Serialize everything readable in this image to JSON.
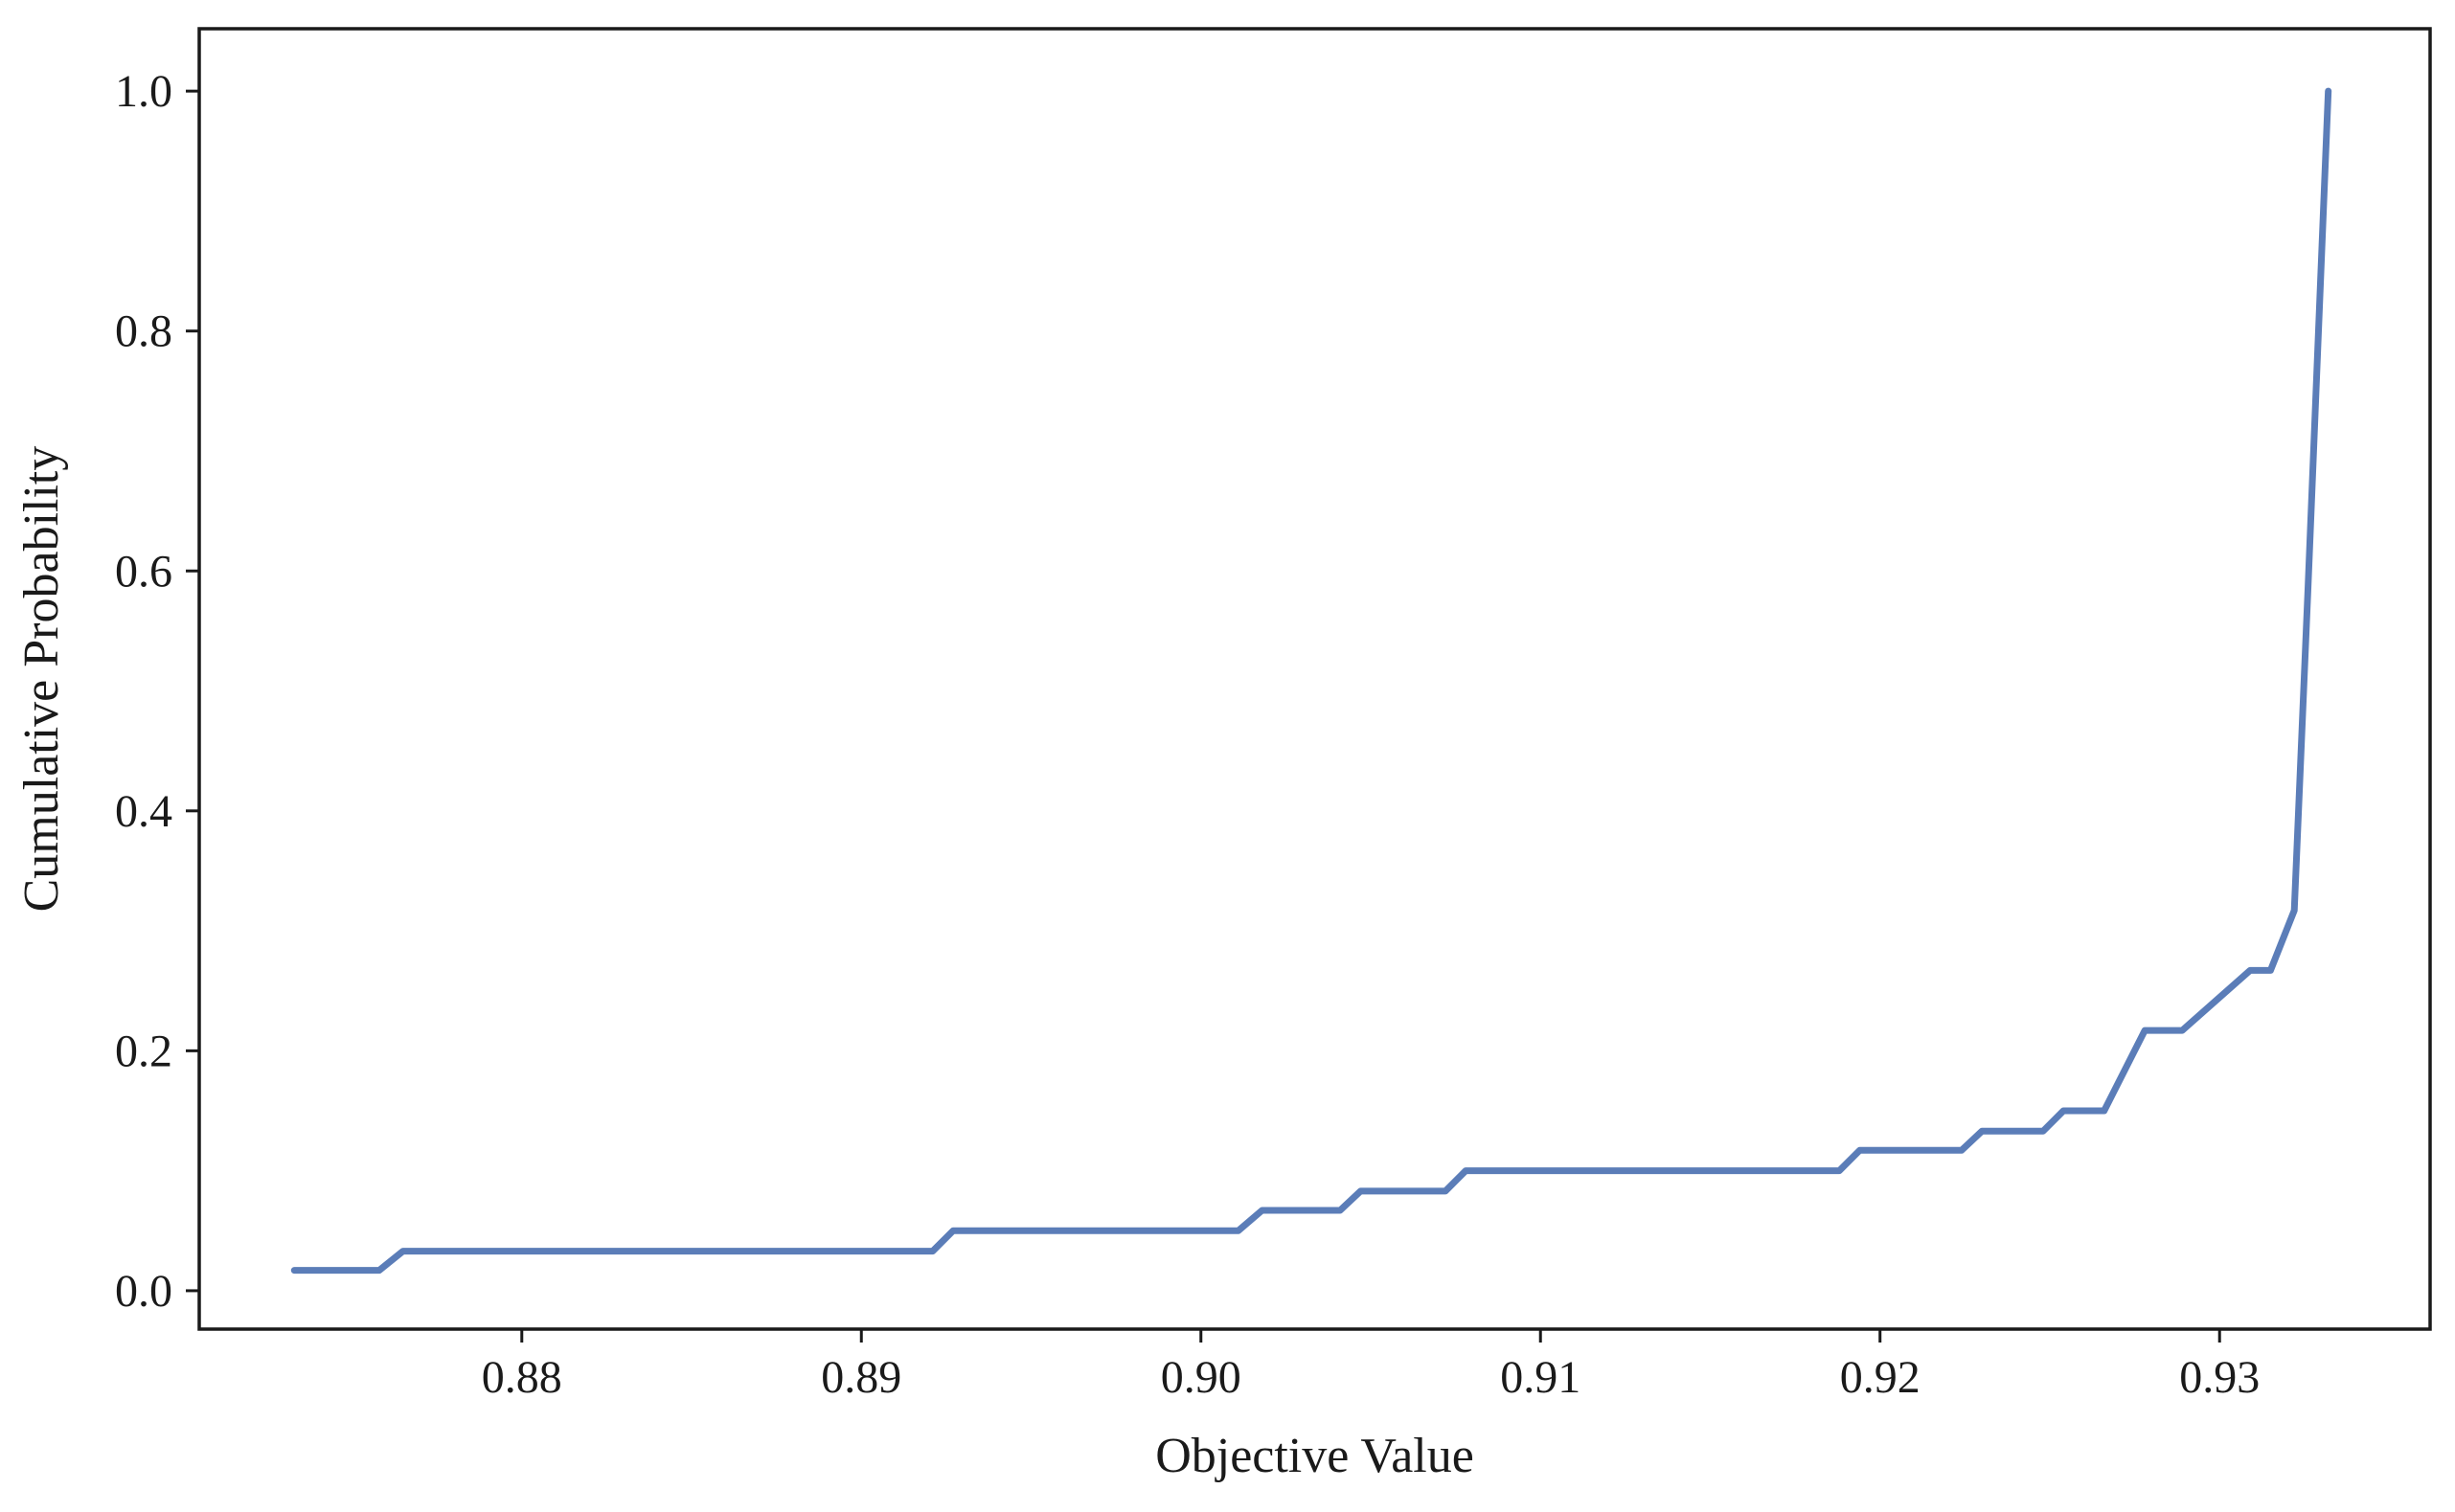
{
  "chart_data": {
    "type": "line",
    "title": "",
    "xlabel": "Objective Value",
    "ylabel": "Cumulative Probability",
    "xlim": [
      0.8705,
      0.9362
    ],
    "ylim": [
      -0.032,
      1.052
    ],
    "xticks": [
      0.88,
      0.89,
      0.9,
      0.91,
      0.92,
      0.93
    ],
    "xtick_labels": [
      "0.88",
      "0.89",
      "0.90",
      "0.91",
      "0.92",
      "0.93"
    ],
    "yticks": [
      0.0,
      0.2,
      0.4,
      0.6,
      0.8,
      1.0
    ],
    "ytick_labels": [
      "0.0",
      "0.2",
      "0.4",
      "0.6",
      "0.8",
      "1.0"
    ],
    "grid": false,
    "line_color": "#5b7db8",
    "series": [
      {
        "x": [
          0.8733,
          0.8758,
          0.8765,
          0.8921,
          0.8927,
          0.9011,
          0.9018,
          0.9041,
          0.9047,
          0.9072,
          0.9078,
          0.9188,
          0.9194,
          0.9224,
          0.923,
          0.9248,
          0.9254,
          0.9266,
          0.9278,
          0.9289,
          0.9309,
          0.9315,
          0.9322,
          0.9326,
          0.9332
        ],
        "y": [
          0.017,
          0.017,
          0.033,
          0.033,
          0.05,
          0.05,
          0.067,
          0.067,
          0.083,
          0.083,
          0.1,
          0.1,
          0.117,
          0.117,
          0.133,
          0.133,
          0.15,
          0.15,
          0.217,
          0.217,
          0.267,
          0.267,
          0.317,
          0.583,
          1.0
        ]
      }
    ]
  }
}
